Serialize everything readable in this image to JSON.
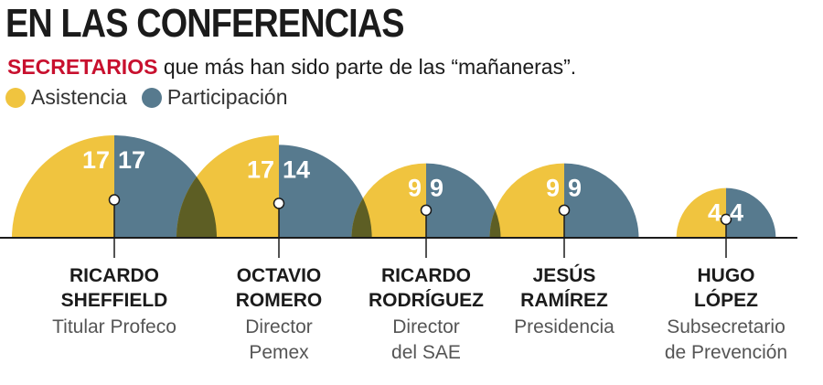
{
  "header": {
    "title": "EN LAS CONFERENCIAS",
    "subtitle_highlight": "SECRETARIOS",
    "subtitle_rest": " que más han sido parte de las “mañaneras”."
  },
  "colors": {
    "asistencia": "#f0c43f",
    "participacion": "#577a8e",
    "overlap": "#5d5e24",
    "axis": "#1b1b1b"
  },
  "chart_data": {
    "type": "semicircle-overlap",
    "title": "EN LAS CONFERENCIAS",
    "legend": [
      "Asistencia",
      "Participación"
    ],
    "legend_placement": "top-left",
    "series": [
      {
        "name": "Asistencia",
        "values": [
          17,
          17,
          9,
          9,
          4
        ]
      },
      {
        "name": "Participación",
        "values": [
          17,
          14,
          9,
          9,
          4
        ]
      }
    ],
    "people": [
      {
        "name_lines": [
          "RICARDO",
          "SHEFFIELD"
        ],
        "role_lines": [
          "Titular Profeco"
        ],
        "asistencia": 17,
        "participacion": 17
      },
      {
        "name_lines": [
          "OCTAVIO",
          "ROMERO"
        ],
        "role_lines": [
          "Director",
          "Pemex"
        ],
        "asistencia": 17,
        "participacion": 14
      },
      {
        "name_lines": [
          "RICARDO",
          "RODRÍGUEZ"
        ],
        "role_lines": [
          "Director",
          "del SAE"
        ],
        "asistencia": 9,
        "participacion": 9
      },
      {
        "name_lines": [
          "JESÚS",
          "RAMÍREZ"
        ],
        "role_lines": [
          "Presidencia"
        ],
        "asistencia": 9,
        "participacion": 9
      },
      {
        "name_lines": [
          "HUGO",
          "LÓPEZ"
        ],
        "role_lines": [
          "Subsecretario",
          "de Prevención"
        ],
        "asistencia": 4,
        "participacion": 4
      }
    ]
  }
}
